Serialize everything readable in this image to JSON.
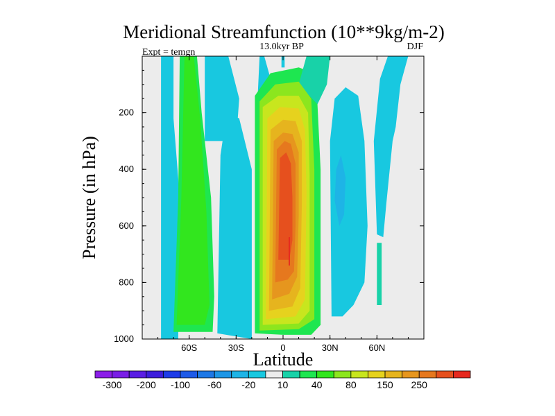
{
  "chart_data": {
    "type": "filled-contour",
    "title": "Meridional Streamfunction (10**9kg/m-2)",
    "subtitle": "13.0kyr BP",
    "left_annotation": "Expt = temgn",
    "right_annotation": "DJF",
    "xlabel": "Latitude",
    "ylabel": "Pressure (in hPa)",
    "xlim": [
      -90,
      90
    ],
    "ylim": [
      1000,
      0
    ],
    "y_inverted": true,
    "x_ticks": [
      {
        "value": -60,
        "label": "60S"
      },
      {
        "value": -30,
        "label": "30S"
      },
      {
        "value": 0,
        "label": "0"
      },
      {
        "value": 30,
        "label": "30N"
      },
      {
        "value": 60,
        "label": "60N"
      }
    ],
    "y_ticks": [
      {
        "value": 200,
        "label": "200"
      },
      {
        "value": 400,
        "label": "400"
      },
      {
        "value": 600,
        "label": "600"
      },
      {
        "value": 800,
        "label": "800"
      },
      {
        "value": 1000,
        "label": "1000"
      }
    ],
    "colorbar": {
      "colors": [
        "#8b1ee8",
        "#7a1ee6",
        "#5a1ee4",
        "#3c1edc",
        "#1e3ce8",
        "#1e5ae8",
        "#1e78e6",
        "#1e96e6",
        "#1eb4e6",
        "#18c8e0",
        "#ececec",
        "#18d2a8",
        "#1ee650",
        "#32e61e",
        "#8ce61e",
        "#c8e61e",
        "#e6d21e",
        "#e6b41e",
        "#e6961e",
        "#e6781e",
        "#e6501e",
        "#e6281e"
      ],
      "labels": [
        {
          "boundary": 1,
          "text": "-300"
        },
        {
          "boundary": 3,
          "text": "-200"
        },
        {
          "boundary": 5,
          "text": "-100"
        },
        {
          "boundary": 7,
          "text": "-60"
        },
        {
          "boundary": 9,
          "text": "-20"
        },
        {
          "boundary": 11,
          "text": "10"
        },
        {
          "boundary": 13,
          "text": "40"
        },
        {
          "boundary": 15,
          "text": "80"
        },
        {
          "boundary": 17,
          "text": "150"
        },
        {
          "boundary": 19,
          "text": "250"
        }
      ]
    },
    "regions": [
      {
        "name": "contour-neg-band-70S",
        "level": 9,
        "points": [
          [
            -78,
            1000
          ],
          [
            -78,
            0
          ],
          [
            -70,
            0
          ],
          [
            -70,
            220
          ],
          [
            -66,
            500
          ],
          [
            -67,
            1000
          ]
        ]
      },
      {
        "name": "contour-pos-band-55S",
        "level": 12,
        "points": [
          [
            -70,
            975
          ],
          [
            -67,
            500
          ],
          [
            -66,
            0
          ],
          [
            -55,
            0
          ],
          [
            -52,
            200
          ],
          [
            -46,
            500
          ],
          [
            -44,
            850
          ],
          [
            -45,
            975
          ]
        ]
      },
      {
        "name": "contour-pos-band-55S-core",
        "level": 13,
        "points": [
          [
            -68,
            950
          ],
          [
            -65,
            500
          ],
          [
            -63,
            0
          ],
          [
            -57,
            0
          ],
          [
            -53,
            220
          ],
          [
            -49,
            550
          ],
          [
            -47,
            880
          ],
          [
            -50,
            950
          ]
        ]
      },
      {
        "name": "contour-neg-upper-45S",
        "level": 9,
        "points": [
          [
            -50,
            300
          ],
          [
            -50,
            0
          ],
          [
            -35,
            0
          ],
          [
            -28,
            150
          ],
          [
            -30,
            300
          ],
          [
            -40,
            300
          ]
        ]
      },
      {
        "name": "contour-neg-band-30S",
        "level": 9,
        "points": [
          [
            -42,
            980
          ],
          [
            -40,
            350
          ],
          [
            -36,
            200
          ],
          [
            -28,
            220
          ],
          [
            -20,
            400
          ],
          [
            -20,
            1000
          ]
        ]
      },
      {
        "name": "contour-neg-upper-10S",
        "level": 9,
        "points": [
          [
            -18,
            350
          ],
          [
            -15,
            0
          ],
          [
            -12,
            0
          ],
          [
            -8,
            80
          ],
          [
            -12,
            200
          ]
        ]
      },
      {
        "name": "contour-neg-core-10N",
        "level": 9,
        "points": [
          [
            -1,
            40
          ],
          [
            -1,
            0
          ],
          [
            1,
            0
          ],
          [
            1,
            40
          ]
        ]
      },
      {
        "name": "contour-hadley-l1",
        "level": 12,
        "points": [
          [
            -18,
            980
          ],
          [
            -18,
            140
          ],
          [
            -8,
            60
          ],
          [
            10,
            40
          ],
          [
            20,
            60
          ],
          [
            22,
            170
          ],
          [
            24,
            400
          ],
          [
            24,
            950
          ],
          [
            18,
            985
          ],
          [
            0,
            985
          ]
        ]
      },
      {
        "name": "contour-hadley-upper-plume",
        "level": 11,
        "points": [
          [
            10,
            100
          ],
          [
            15,
            0
          ],
          [
            30,
            0
          ],
          [
            28,
            100
          ],
          [
            22,
            170
          ]
        ]
      },
      {
        "name": "contour-hadley-l2",
        "level": 14,
        "points": [
          [
            -15,
            970
          ],
          [
            -15,
            160
          ],
          [
            -5,
            100
          ],
          [
            10,
            90
          ],
          [
            18,
            150
          ],
          [
            20,
            400
          ],
          [
            20,
            930
          ],
          [
            10,
            965
          ]
        ]
      },
      {
        "name": "contour-hadley-l3",
        "level": 15,
        "points": [
          [
            -13,
            950
          ],
          [
            -13,
            180
          ],
          [
            -3,
            140
          ],
          [
            10,
            140
          ],
          [
            16,
            200
          ],
          [
            17,
            420
          ],
          [
            17,
            900
          ],
          [
            10,
            945
          ]
        ]
      },
      {
        "name": "contour-hadley-l4",
        "level": 16,
        "points": [
          [
            -11,
            930
          ],
          [
            -10,
            220
          ],
          [
            -2,
            180
          ],
          [
            10,
            185
          ],
          [
            14,
            260
          ],
          [
            15,
            480
          ],
          [
            14,
            860
          ],
          [
            8,
            920
          ]
        ]
      },
      {
        "name": "contour-hadley-l5",
        "level": 17,
        "points": [
          [
            -9,
            900
          ],
          [
            -8,
            260
          ],
          [
            0,
            225
          ],
          [
            8,
            230
          ],
          [
            12,
            300
          ],
          [
            12,
            520
          ],
          [
            11,
            820
          ],
          [
            6,
            885
          ]
        ]
      },
      {
        "name": "contour-hadley-l6",
        "level": 18,
        "points": [
          [
            -7,
            860
          ],
          [
            -6,
            300
          ],
          [
            0,
            270
          ],
          [
            6,
            275
          ],
          [
            10,
            340
          ],
          [
            10,
            560
          ],
          [
            9,
            780
          ],
          [
            4,
            840
          ]
        ]
      },
      {
        "name": "contour-hadley-l7",
        "level": 19,
        "points": [
          [
            -5,
            800
          ],
          [
            -4,
            330
          ],
          [
            1,
            300
          ],
          [
            5,
            310
          ],
          [
            8,
            380
          ],
          [
            8,
            600
          ],
          [
            7,
            760
          ],
          [
            3,
            790
          ]
        ]
      },
      {
        "name": "contour-hadley-l8",
        "level": 20,
        "points": [
          [
            -3,
            720
          ],
          [
            -2,
            360
          ],
          [
            2,
            340
          ],
          [
            5,
            380
          ],
          [
            6,
            500
          ],
          [
            6,
            650
          ],
          [
            4,
            720
          ]
        ]
      },
      {
        "name": "contour-hadley-max",
        "level": 21,
        "points": [
          [
            3.6,
            740
          ],
          [
            3.6,
            640
          ],
          [
            4.4,
            640
          ],
          [
            4.4,
            740
          ]
        ]
      },
      {
        "name": "contour-neg-band-40N",
        "level": 9,
        "points": [
          [
            31,
            920
          ],
          [
            30,
            300
          ],
          [
            33,
            150
          ],
          [
            40,
            110
          ],
          [
            48,
            140
          ],
          [
            52,
            300
          ],
          [
            54,
            600
          ],
          [
            52,
            800
          ],
          [
            45,
            880
          ],
          [
            38,
            920
          ]
        ]
      },
      {
        "name": "contour-neg-band-40N-inner",
        "level": 8,
        "points": [
          [
            33,
            510
          ],
          [
            34,
            400
          ],
          [
            37,
            350
          ],
          [
            40,
            430
          ],
          [
            39,
            560
          ],
          [
            36,
            600
          ]
        ]
      },
      {
        "name": "contour-neg-band-70N",
        "level": 9,
        "points": [
          [
            60,
            630
          ],
          [
            58,
            300
          ],
          [
            62,
            80
          ],
          [
            67,
            0
          ],
          [
            80,
            0
          ],
          [
            75,
            100
          ],
          [
            72,
            250
          ],
          [
            70,
            300
          ],
          [
            66,
            520
          ],
          [
            64,
            640
          ]
        ]
      },
      {
        "name": "contour-pos-band-60N",
        "level": 11,
        "points": [
          [
            60,
            880
          ],
          [
            60,
            660
          ],
          [
            63,
            660
          ],
          [
            63,
            880
          ]
        ]
      }
    ]
  }
}
